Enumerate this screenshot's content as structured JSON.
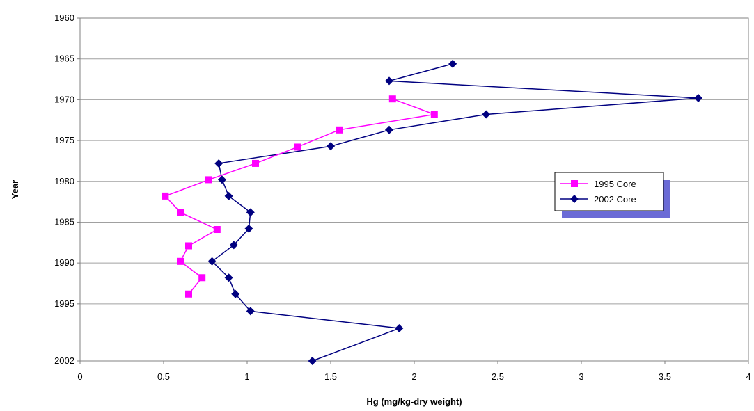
{
  "chart_data": {
    "type": "line",
    "title": "",
    "xlabel": "Hg (mg/kg-dry weight)",
    "ylabel": "Year",
    "xlim": [
      0,
      4
    ],
    "xticks": [
      0,
      0.5,
      1,
      1.5,
      2,
      2.5,
      3,
      3.5,
      4
    ],
    "xtick_labels": [
      "0",
      "0.5",
      "1",
      "1.5",
      "2",
      "2.5",
      "3",
      "3.5",
      "4"
    ],
    "ylim": [
      1960,
      2002
    ],
    "y_inverted": true,
    "yticks": [
      1960,
      1965,
      1970,
      1975,
      1980,
      1985,
      1990,
      1995,
      2002
    ],
    "ytick_labels": [
      "1960",
      "1965",
      "1970",
      "1975",
      "1980",
      "1985",
      "1990",
      "1995",
      "2002"
    ],
    "grid": "horizontal",
    "legend_position": "right",
    "series": [
      {
        "name": "1995 Core",
        "color": "#ff00ff",
        "marker": "square",
        "points": [
          {
            "x": 1.87,
            "y": 1969.9
          },
          {
            "x": 2.12,
            "y": 1971.8
          },
          {
            "x": 1.55,
            "y": 1973.7
          },
          {
            "x": 1.3,
            "y": 1975.8
          },
          {
            "x": 1.05,
            "y": 1977.8
          },
          {
            "x": 0.77,
            "y": 1979.8
          },
          {
            "x": 0.51,
            "y": 1981.8
          },
          {
            "x": 0.6,
            "y": 1983.8
          },
          {
            "x": 0.82,
            "y": 1985.9
          },
          {
            "x": 0.65,
            "y": 1987.9
          },
          {
            "x": 0.6,
            "y": 1989.8
          },
          {
            "x": 0.73,
            "y": 1991.8
          },
          {
            "x": 0.65,
            "y": 1993.8
          }
        ]
      },
      {
        "name": "2002 Core",
        "color": "#000080",
        "marker": "diamond",
        "points": [
          {
            "x": 2.23,
            "y": 1965.6
          },
          {
            "x": 1.85,
            "y": 1967.7
          },
          {
            "x": 3.7,
            "y": 1969.8
          },
          {
            "x": 2.43,
            "y": 1971.8
          },
          {
            "x": 1.85,
            "y": 1973.7
          },
          {
            "x": 1.5,
            "y": 1975.7
          },
          {
            "x": 0.83,
            "y": 1977.8
          },
          {
            "x": 0.85,
            "y": 1979.8
          },
          {
            "x": 0.89,
            "y": 1981.8
          },
          {
            "x": 1.02,
            "y": 1983.8
          },
          {
            "x": 1.01,
            "y": 1985.8
          },
          {
            "x": 0.92,
            "y": 1987.8
          },
          {
            "x": 0.79,
            "y": 1989.8
          },
          {
            "x": 0.89,
            "y": 1991.8
          },
          {
            "x": 0.93,
            "y": 1993.8
          },
          {
            "x": 1.02,
            "y": 1995.9
          },
          {
            "x": 1.91,
            "y": 1998.0
          },
          {
            "x": 1.39,
            "y": 2002.0
          }
        ]
      }
    ]
  }
}
